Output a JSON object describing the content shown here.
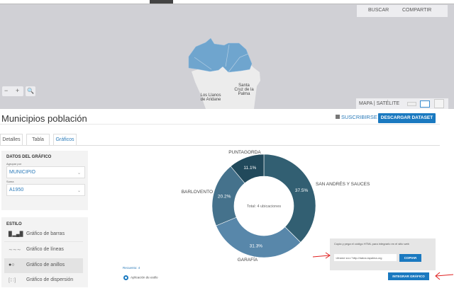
{
  "map": {
    "buttons": {
      "search": "BUSCAR",
      "share": "COMPARTIR"
    },
    "zoom_out": "−",
    "zoom_in": "+",
    "labels": {
      "los_llanos": "Los Llanos de Aridane",
      "santa_cruz": "Santa Cruz de la Palma"
    },
    "layer_switch": "MAPA | SATÉLITE",
    "region_color": "#6fa5ce"
  },
  "header": {
    "title": "Municipios población",
    "subscribe": "SUSCRIBIRSE",
    "download": "DESCARGAR DATASET"
  },
  "tabs": [
    {
      "label": "Detalles"
    },
    {
      "label": "Tabla"
    },
    {
      "label": "Gráficos",
      "active": true
    }
  ],
  "chart_settings": {
    "title": "DATOS DEL GRÁFICO",
    "group_label": "Agrupar por",
    "group_value": "MUNICIPIO",
    "sum_label": "Suma",
    "sum_value": "A1950"
  },
  "style": {
    "title": "ESTILO",
    "items": [
      {
        "label": "Gráfico de barras",
        "icon": "bar-chart-icon"
      },
      {
        "label": "Gráfico de líneas",
        "icon": "line-chart-icon"
      },
      {
        "label": "Gráfico de anillos",
        "icon": "donut-chart-icon",
        "active": true
      },
      {
        "label": "Gráfico de dispersión",
        "icon": "scatter-chart-icon"
      }
    ]
  },
  "footer": {
    "count": "Recuento: 4",
    "style_app": "Aplicación de estilo"
  },
  "chart_data": {
    "type": "pie",
    "donut": true,
    "center_text": "Total: 4 ubicaciones",
    "slices": [
      {
        "label": "SAN ANDRÉS Y SAUCES",
        "value": 37.5,
        "pct": "37.5%",
        "color": "#325f72"
      },
      {
        "label": "GARAFÍA",
        "value": 31.3,
        "pct": "31.3%",
        "color": "#5887aa"
      },
      {
        "label": "BARLOVENTO",
        "value": 20.2,
        "pct": "20.2%",
        "color": "#45728c"
      },
      {
        "label": "PUNTAGORDA",
        "value": 11.1,
        "pct": "11.1%",
        "color": "#21495b"
      }
    ]
  },
  "embed": {
    "instructions": "Copia y pega el código HTML para integrarlo en el sitio web",
    "code": "<iframe src=\"http://datos.lapalma.org",
    "copy": "COPIAR",
    "integrate": "INTEGRAR GRÁFICO"
  }
}
